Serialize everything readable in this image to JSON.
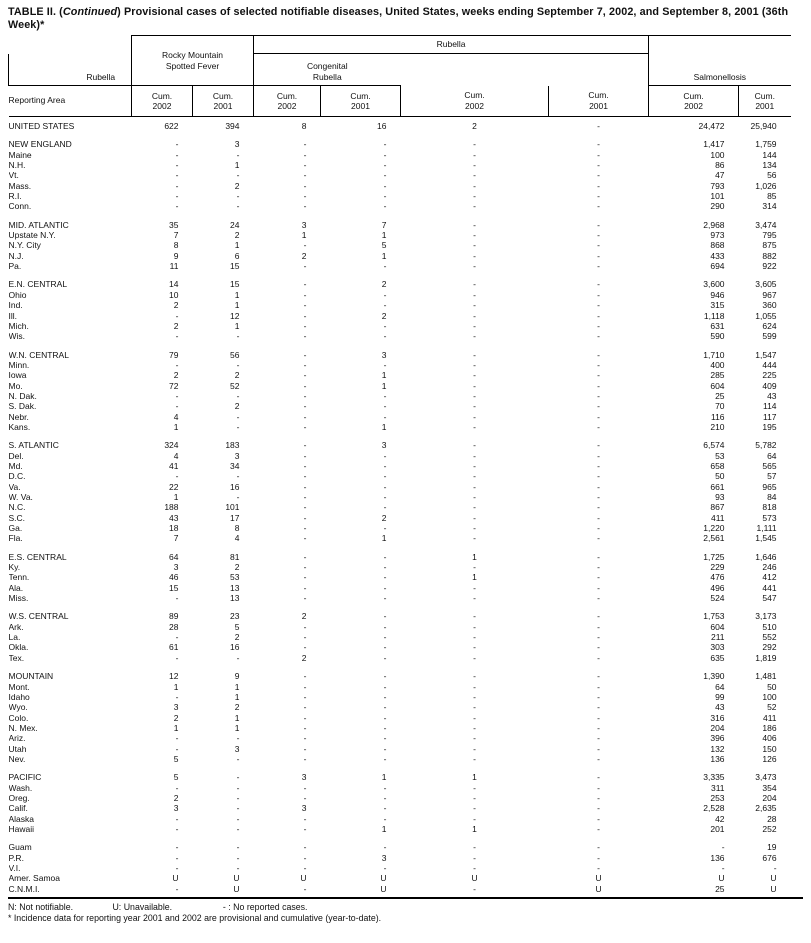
{
  "title": {
    "part1": "TABLE II. (",
    "italic": "Continued",
    "part2": ") Provisional cases of selected notifiable diseases, United States, weeks ending September 7, 2002, and September 8, 2001 (36th Week)*"
  },
  "header": {
    "reporting_area": "Reporting Area",
    "top_group": "Rubella",
    "groups": {
      "rmsf_line1": "Rocky Mountain",
      "rmsf_line2": "Spotted Fever",
      "rubella": "Rubella",
      "congenital_line1": "Congenital",
      "congenital_line2": "Rubella",
      "salmonellosis": "Salmonellosis"
    },
    "cum": "Cum.",
    "years": [
      "2002",
      "2001",
      "2002",
      "2001",
      "2002",
      "2001",
      "2002",
      "2001"
    ]
  },
  "table": {
    "sections": [
      {
        "rows": [
          {
            "area": "UNITED STATES",
            "values": [
              "622",
              "394",
              "8",
              "16",
              "2",
              "-",
              "24,472",
              "25,940"
            ]
          }
        ]
      },
      {
        "rows": [
          {
            "area": "NEW ENGLAND",
            "values": [
              "-",
              "3",
              "-",
              "-",
              "-",
              "-",
              "1,417",
              "1,759"
            ]
          },
          {
            "area": "Maine",
            "values": [
              "-",
              "-",
              "-",
              "-",
              "-",
              "-",
              "100",
              "144"
            ]
          },
          {
            "area": "N.H.",
            "values": [
              "-",
              "1",
              "-",
              "-",
              "-",
              "-",
              "86",
              "134"
            ]
          },
          {
            "area": "Vt.",
            "values": [
              "-",
              "-",
              "-",
              "-",
              "-",
              "-",
              "47",
              "56"
            ]
          },
          {
            "area": "Mass.",
            "values": [
              "-",
              "2",
              "-",
              "-",
              "-",
              "-",
              "793",
              "1,026"
            ]
          },
          {
            "area": "R.I.",
            "values": [
              "-",
              "-",
              "-",
              "-",
              "-",
              "-",
              "101",
              "85"
            ]
          },
          {
            "area": "Conn.",
            "values": [
              "-",
              "-",
              "-",
              "-",
              "-",
              "-",
              "290",
              "314"
            ]
          }
        ]
      },
      {
        "rows": [
          {
            "area": "MID. ATLANTIC",
            "values": [
              "35",
              "24",
              "3",
              "7",
              "-",
              "-",
              "2,968",
              "3,474"
            ]
          },
          {
            "area": "Upstate N.Y.",
            "values": [
              "7",
              "2",
              "1",
              "1",
              "-",
              "-",
              "973",
              "795"
            ]
          },
          {
            "area": "N.Y. City",
            "values": [
              "8",
              "1",
              "-",
              "5",
              "-",
              "-",
              "868",
              "875"
            ]
          },
          {
            "area": "N.J.",
            "values": [
              "9",
              "6",
              "2",
              "1",
              "-",
              "-",
              "433",
              "882"
            ]
          },
          {
            "area": "Pa.",
            "values": [
              "11",
              "15",
              "-",
              "-",
              "-",
              "-",
              "694",
              "922"
            ]
          }
        ]
      },
      {
        "rows": [
          {
            "area": "E.N. CENTRAL",
            "values": [
              "14",
              "15",
              "-",
              "2",
              "-",
              "-",
              "3,600",
              "3,605"
            ]
          },
          {
            "area": "Ohio",
            "values": [
              "10",
              "1",
              "-",
              "-",
              "-",
              "-",
              "946",
              "967"
            ]
          },
          {
            "area": "Ind.",
            "values": [
              "2",
              "1",
              "-",
              "-",
              "-",
              "-",
              "315",
              "360"
            ]
          },
          {
            "area": "Ill.",
            "values": [
              "-",
              "12",
              "-",
              "2",
              "-",
              "-",
              "1,118",
              "1,055"
            ]
          },
          {
            "area": "Mich.",
            "values": [
              "2",
              "1",
              "-",
              "-",
              "-",
              "-",
              "631",
              "624"
            ]
          },
          {
            "area": "Wis.",
            "values": [
              "-",
              "-",
              "-",
              "-",
              "-",
              "-",
              "590",
              "599"
            ]
          }
        ]
      },
      {
        "rows": [
          {
            "area": "W.N. CENTRAL",
            "values": [
              "79",
              "56",
              "-",
              "3",
              "-",
              "-",
              "1,710",
              "1,547"
            ]
          },
          {
            "area": "Minn.",
            "values": [
              "-",
              "-",
              "-",
              "-",
              "-",
              "-",
              "400",
              "444"
            ]
          },
          {
            "area": "Iowa",
            "values": [
              "2",
              "2",
              "-",
              "1",
              "-",
              "-",
              "285",
              "225"
            ]
          },
          {
            "area": "Mo.",
            "values": [
              "72",
              "52",
              "-",
              "1",
              "-",
              "-",
              "604",
              "409"
            ]
          },
          {
            "area": "N. Dak.",
            "values": [
              "-",
              "-",
              "-",
              "-",
              "-",
              "-",
              "25",
              "43"
            ]
          },
          {
            "area": "S. Dak.",
            "values": [
              "-",
              "2",
              "-",
              "-",
              "-",
              "-",
              "70",
              "114"
            ]
          },
          {
            "area": "Nebr.",
            "values": [
              "4",
              "-",
              "-",
              "-",
              "-",
              "-",
              "116",
              "117"
            ]
          },
          {
            "area": "Kans.",
            "values": [
              "1",
              "-",
              "-",
              "1",
              "-",
              "-",
              "210",
              "195"
            ]
          }
        ]
      },
      {
        "rows": [
          {
            "area": "S. ATLANTIC",
            "values": [
              "324",
              "183",
              "-",
              "3",
              "-",
              "-",
              "6,574",
              "5,782"
            ]
          },
          {
            "area": "Del.",
            "values": [
              "4",
              "3",
              "-",
              "-",
              "-",
              "-",
              "53",
              "64"
            ]
          },
          {
            "area": "Md.",
            "values": [
              "41",
              "34",
              "-",
              "-",
              "-",
              "-",
              "658",
              "565"
            ]
          },
          {
            "area": "D.C.",
            "values": [
              "-",
              "-",
              "-",
              "-",
              "-",
              "-",
              "50",
              "57"
            ]
          },
          {
            "area": "Va.",
            "values": [
              "22",
              "16",
              "-",
              "-",
              "-",
              "-",
              "661",
              "965"
            ]
          },
          {
            "area": "W. Va.",
            "values": [
              "1",
              "-",
              "-",
              "-",
              "-",
              "-",
              "93",
              "84"
            ]
          },
          {
            "area": "N.C.",
            "values": [
              "188",
              "101",
              "-",
              "-",
              "-",
              "-",
              "867",
              "818"
            ]
          },
          {
            "area": "S.C.",
            "values": [
              "43",
              "17",
              "-",
              "2",
              "-",
              "-",
              "411",
              "573"
            ]
          },
          {
            "area": "Ga.",
            "values": [
              "18",
              "8",
              "-",
              "-",
              "-",
              "-",
              "1,220",
              "1,111"
            ]
          },
          {
            "area": "Fla.",
            "values": [
              "7",
              "4",
              "-",
              "1",
              "-",
              "-",
              "2,561",
              "1,545"
            ]
          }
        ]
      },
      {
        "rows": [
          {
            "area": "E.S. CENTRAL",
            "values": [
              "64",
              "81",
              "-",
              "-",
              "1",
              "-",
              "1,725",
              "1,646"
            ]
          },
          {
            "area": "Ky.",
            "values": [
              "3",
              "2",
              "-",
              "-",
              "-",
              "-",
              "229",
              "246"
            ]
          },
          {
            "area": "Tenn.",
            "values": [
              "46",
              "53",
              "-",
              "-",
              "1",
              "-",
              "476",
              "412"
            ]
          },
          {
            "area": "Ala.",
            "values": [
              "15",
              "13",
              "-",
              "-",
              "-",
              "-",
              "496",
              "441"
            ]
          },
          {
            "area": "Miss.",
            "values": [
              "-",
              "13",
              "-",
              "-",
              "-",
              "-",
              "524",
              "547"
            ]
          }
        ]
      },
      {
        "rows": [
          {
            "area": "W.S. CENTRAL",
            "values": [
              "89",
              "23",
              "2",
              "-",
              "-",
              "-",
              "1,753",
              "3,173"
            ]
          },
          {
            "area": "Ark.",
            "values": [
              "28",
              "5",
              "-",
              "-",
              "-",
              "-",
              "604",
              "510"
            ]
          },
          {
            "area": "La.",
            "values": [
              "-",
              "2",
              "-",
              "-",
              "-",
              "-",
              "211",
              "552"
            ]
          },
          {
            "area": "Okla.",
            "values": [
              "61",
              "16",
              "-",
              "-",
              "-",
              "-",
              "303",
              "292"
            ]
          },
          {
            "area": "Tex.",
            "values": [
              "-",
              "-",
              "2",
              "-",
              "-",
              "-",
              "635",
              "1,819"
            ]
          }
        ]
      },
      {
        "rows": [
          {
            "area": "MOUNTAIN",
            "values": [
              "12",
              "9",
              "-",
              "-",
              "-",
              "-",
              "1,390",
              "1,481"
            ]
          },
          {
            "area": "Mont.",
            "values": [
              "1",
              "1",
              "-",
              "-",
              "-",
              "-",
              "64",
              "50"
            ]
          },
          {
            "area": "Idaho",
            "values": [
              "-",
              "1",
              "-",
              "-",
              "-",
              "-",
              "99",
              "100"
            ]
          },
          {
            "area": "Wyo.",
            "values": [
              "3",
              "2",
              "-",
              "-",
              "-",
              "-",
              "43",
              "52"
            ]
          },
          {
            "area": "Colo.",
            "values": [
              "2",
              "1",
              "-",
              "-",
              "-",
              "-",
              "316",
              "411"
            ]
          },
          {
            "area": "N. Mex.",
            "values": [
              "1",
              "1",
              "-",
              "-",
              "-",
              "-",
              "204",
              "186"
            ]
          },
          {
            "area": "Ariz.",
            "values": [
              "-",
              "-",
              "-",
              "-",
              "-",
              "-",
              "396",
              "406"
            ]
          },
          {
            "area": "Utah",
            "values": [
              "-",
              "3",
              "-",
              "-",
              "-",
              "-",
              "132",
              "150"
            ]
          },
          {
            "area": "Nev.",
            "values": [
              "5",
              "-",
              "-",
              "-",
              "-",
              "-",
              "136",
              "126"
            ]
          }
        ]
      },
      {
        "rows": [
          {
            "area": "PACIFIC",
            "values": [
              "5",
              "-",
              "3",
              "1",
              "1",
              "-",
              "3,335",
              "3,473"
            ]
          },
          {
            "area": "Wash.",
            "values": [
              "-",
              "-",
              "-",
              "-",
              "-",
              "-",
              "311",
              "354"
            ]
          },
          {
            "area": "Oreg.",
            "values": [
              "2",
              "-",
              "-",
              "-",
              "-",
              "-",
              "253",
              "204"
            ]
          },
          {
            "area": "Calif.",
            "values": [
              "3",
              "-",
              "3",
              "-",
              "-",
              "-",
              "2,528",
              "2,635"
            ]
          },
          {
            "area": "Alaska",
            "values": [
              "-",
              "-",
              "-",
              "-",
              "-",
              "-",
              "42",
              "28"
            ]
          },
          {
            "area": "Hawaii",
            "values": [
              "-",
              "-",
              "-",
              "1",
              "1",
              "-",
              "201",
              "252"
            ]
          }
        ]
      },
      {
        "rows": [
          {
            "area": "Guam",
            "values": [
              "-",
              "-",
              "-",
              "-",
              "-",
              "-",
              "-",
              "19"
            ]
          },
          {
            "area": "P.R.",
            "values": [
              "-",
              "-",
              "-",
              "3",
              "-",
              "-",
              "136",
              "676"
            ]
          },
          {
            "area": "V.I.",
            "values": [
              "-",
              "-",
              "-",
              "-",
              "-",
              "-",
              "-",
              "-"
            ]
          },
          {
            "area": "Amer. Samoa",
            "values": [
              "U",
              "U",
              "U",
              "U",
              "U",
              "U",
              "U",
              "U"
            ]
          },
          {
            "area": "C.N.M.I.",
            "values": [
              "-",
              "U",
              "-",
              "U",
              "-",
              "U",
              "25",
              "U"
            ]
          }
        ]
      }
    ]
  },
  "footnotes": {
    "n": "N: Not notifiable.",
    "u": "U: Unavailable.",
    "dash": "- : No reported cases.",
    "star": "* Incidence data for reporting year 2001 and 2002 are provisional and cumulative (year-to-date)."
  }
}
